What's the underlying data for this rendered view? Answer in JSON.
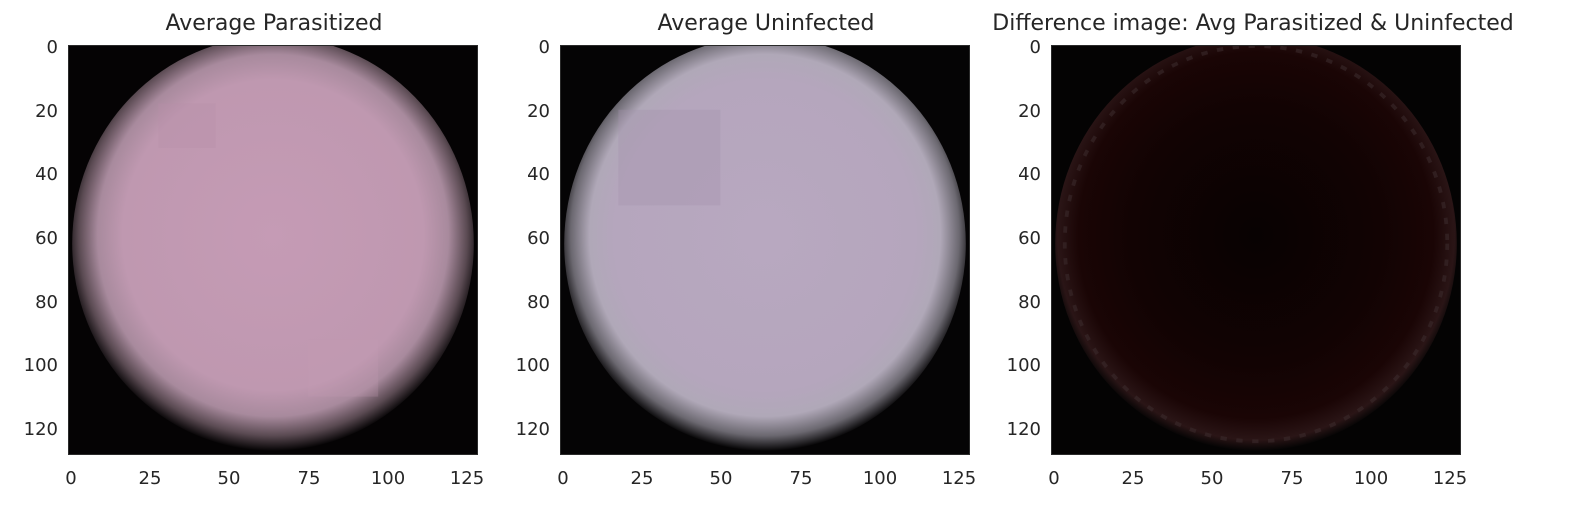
{
  "figure": {
    "panels": [
      {
        "title": "Average Parasitized",
        "image": "average-parasitized-cell",
        "cell_color": "#c79ab5",
        "x_ticks": [
          "0",
          "25",
          "50",
          "75",
          "100",
          "125"
        ],
        "y_ticks": [
          "0",
          "20",
          "40",
          "60",
          "80",
          "100",
          "120"
        ]
      },
      {
        "title": "Average Uninfected",
        "image": "average-uninfected-cell",
        "cell_color": "#b7a7bf",
        "x_ticks": [
          "0",
          "25",
          "50",
          "75",
          "100",
          "125"
        ],
        "y_ticks": [
          "0",
          "20",
          "40",
          "60",
          "80",
          "100",
          "120"
        ]
      },
      {
        "title": "Difference image: Avg Parasitized & Uninfected",
        "image": "difference-image",
        "cell_color": "#1a0404",
        "x_ticks": [
          "0",
          "25",
          "50",
          "75",
          "100",
          "125"
        ],
        "y_ticks": [
          "0",
          "20",
          "40",
          "60",
          "80",
          "100",
          "120"
        ]
      }
    ]
  }
}
